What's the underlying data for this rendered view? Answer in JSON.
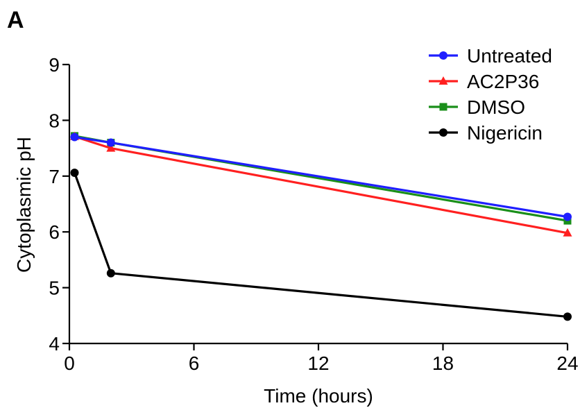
{
  "panel_label": "A",
  "chart_data": {
    "type": "line",
    "title": "",
    "xlabel": "Time (hours)",
    "ylabel": "Cytoplasmic pH",
    "xlim": [
      0,
      24
    ],
    "ylim": [
      4,
      9
    ],
    "xticks": [
      0,
      6,
      12,
      18,
      24
    ],
    "yticks": [
      4,
      5,
      6,
      7,
      8,
      9
    ],
    "legend_position": "top-right",
    "grid": false,
    "series": [
      {
        "name": "Untreated",
        "color": "#1f1fff",
        "marker": "circle",
        "x": [
          0.25,
          2,
          24
        ],
        "y": [
          7.7,
          7.6,
          6.27
        ]
      },
      {
        "name": "AC2P36",
        "color": "#ff2020",
        "marker": "triangle",
        "x": [
          0.25,
          2,
          24
        ],
        "y": [
          7.71,
          7.5,
          5.98
        ]
      },
      {
        "name": "DMSO",
        "color": "#1a8f1a",
        "marker": "square",
        "x": [
          0.25,
          2,
          24
        ],
        "y": [
          7.72,
          7.6,
          6.2
        ]
      },
      {
        "name": "Nigericin",
        "color": "#000000",
        "marker": "circle",
        "x": [
          0.25,
          2,
          24
        ],
        "y": [
          7.06,
          5.26,
          4.48
        ]
      }
    ]
  }
}
